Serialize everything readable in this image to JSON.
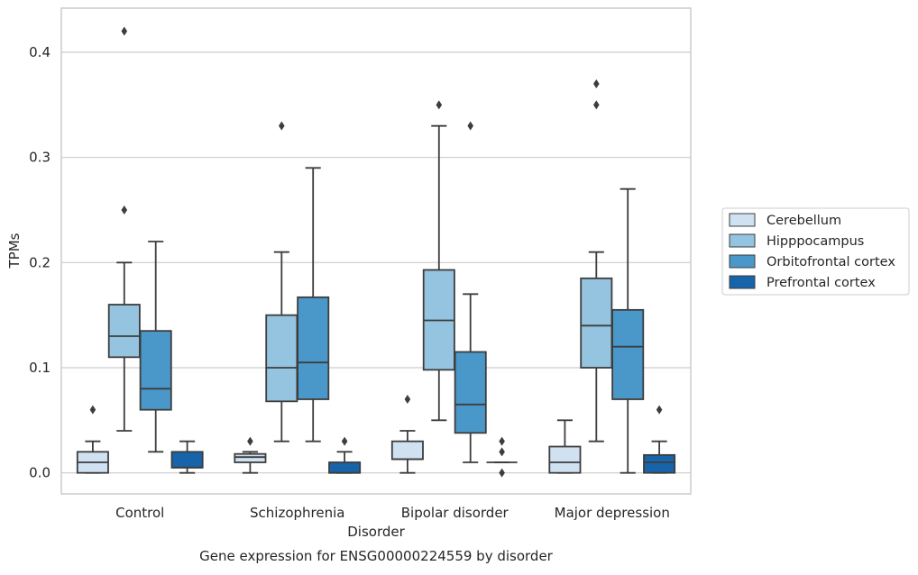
{
  "chart_data": {
    "type": "box",
    "title": "",
    "caption": "Gene expression for ENSG00000224559 by disorder",
    "xlabel": "Disorder",
    "ylabel": "TPMs",
    "ylim": [
      -0.02,
      0.442
    ],
    "yticks": [
      0.0,
      0.1,
      0.2,
      0.3,
      0.4
    ],
    "ytick_labels": [
      "0.0",
      "0.1",
      "0.2",
      "0.3",
      "0.4"
    ],
    "grid": "horizontal",
    "legend_position": "right",
    "categories": [
      "Control",
      "Schizophrenia",
      "Bipolar disorder",
      "Major depression"
    ],
    "series": [
      {
        "name": "Cerebellum",
        "color": "#d0e1f2",
        "boxes": [
          {
            "whisker_low": 0.0,
            "q1": 0.0,
            "median": 0.01,
            "q3": 0.02,
            "whisker_high": 0.03,
            "outliers": [
              0.06
            ]
          },
          {
            "whisker_low": 0.0,
            "q1": 0.01,
            "median": 0.015,
            "q3": 0.018,
            "whisker_high": 0.02,
            "outliers": [
              0.03
            ]
          },
          {
            "whisker_low": 0.0,
            "q1": 0.013,
            "median": 0.013,
            "q3": 0.03,
            "whisker_high": 0.04,
            "outliers": [
              0.07
            ]
          },
          {
            "whisker_low": 0.0,
            "q1": 0.0,
            "median": 0.01,
            "q3": 0.025,
            "whisker_high": 0.05,
            "outliers": []
          }
        ]
      },
      {
        "name": "Hipppocampus",
        "color": "#94c4df",
        "boxes": [
          {
            "whisker_low": 0.04,
            "q1": 0.11,
            "median": 0.13,
            "q3": 0.16,
            "whisker_high": 0.2,
            "outliers": [
              0.25,
              0.42
            ]
          },
          {
            "whisker_low": 0.03,
            "q1": 0.068,
            "median": 0.1,
            "q3": 0.15,
            "whisker_high": 0.21,
            "outliers": [
              0.33
            ]
          },
          {
            "whisker_low": 0.05,
            "q1": 0.098,
            "median": 0.145,
            "q3": 0.193,
            "whisker_high": 0.33,
            "outliers": [
              0.35
            ]
          },
          {
            "whisker_low": 0.03,
            "q1": 0.1,
            "median": 0.14,
            "q3": 0.185,
            "whisker_high": 0.21,
            "outliers": [
              0.35,
              0.37
            ]
          }
        ]
      },
      {
        "name": "Orbitofrontal cortex",
        "color": "#4a98c9",
        "boxes": [
          {
            "whisker_low": 0.02,
            "q1": 0.06,
            "median": 0.08,
            "q3": 0.135,
            "whisker_high": 0.22,
            "outliers": []
          },
          {
            "whisker_low": 0.03,
            "q1": 0.07,
            "median": 0.105,
            "q3": 0.167,
            "whisker_high": 0.29,
            "outliers": []
          },
          {
            "whisker_low": 0.01,
            "q1": 0.038,
            "median": 0.065,
            "q3": 0.115,
            "whisker_high": 0.17,
            "outliers": [
              0.33
            ]
          },
          {
            "whisker_low": 0.0,
            "q1": 0.07,
            "median": 0.12,
            "q3": 0.155,
            "whisker_high": 0.27,
            "outliers": []
          }
        ]
      },
      {
        "name": "Prefrontal cortex",
        "color": "#1764ab",
        "boxes": [
          {
            "whisker_low": 0.0,
            "q1": 0.005,
            "median": 0.005,
            "q3": 0.02,
            "whisker_high": 0.03,
            "outliers": []
          },
          {
            "whisker_low": 0.0,
            "q1": 0.0,
            "median": 0.0,
            "q3": 0.01,
            "whisker_high": 0.02,
            "outliers": [
              0.03
            ]
          },
          {
            "whisker_low": 0.01,
            "q1": 0.01,
            "median": 0.01,
            "q3": 0.01,
            "whisker_high": 0.01,
            "outliers": [
              0.0,
              0.02,
              0.03
            ]
          },
          {
            "whisker_low": 0.0,
            "q1": 0.0,
            "median": 0.01,
            "q3": 0.017,
            "whisker_high": 0.03,
            "outliers": [
              0.06
            ]
          }
        ]
      }
    ]
  }
}
